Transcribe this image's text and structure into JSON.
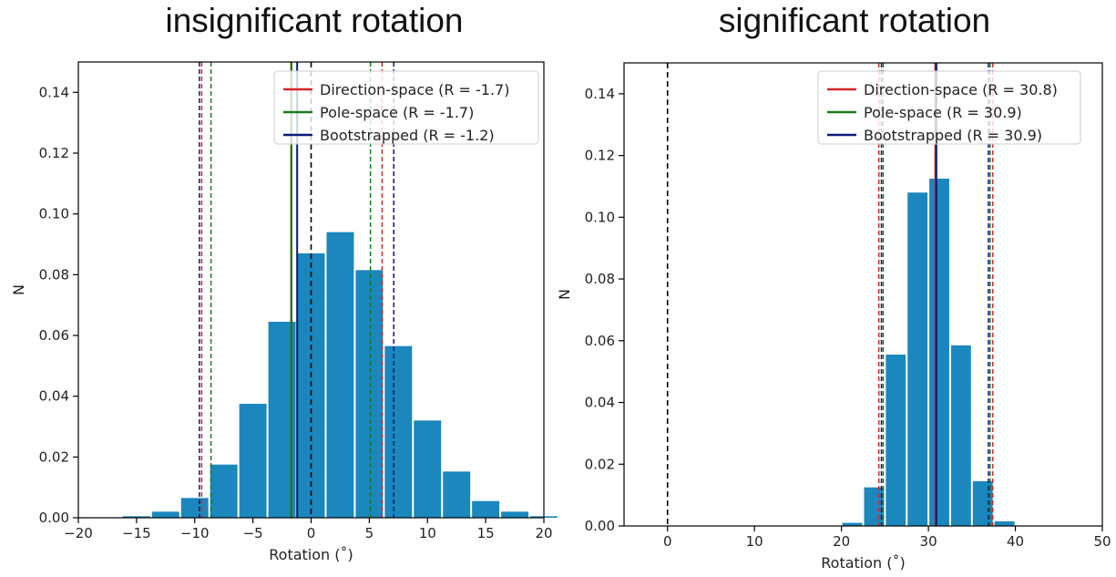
{
  "chart_data": [
    {
      "type": "bar",
      "title": "insignificant rotation",
      "xlabel": "Rotation (˚)",
      "ylabel": "N",
      "xlim": [
        -20,
        20
      ],
      "ylim": [
        0,
        0.15
      ],
      "xticks": [
        -20,
        -15,
        -10,
        -5,
        0,
        5,
        10,
        15,
        20
      ],
      "xtick_labels": [
        "−20",
        "−15",
        "−10",
        "−5",
        "0",
        "5",
        "10",
        "15",
        "20"
      ],
      "yticks": [
        0.0,
        0.02,
        0.04,
        0.06,
        0.08,
        0.1,
        0.12,
        0.14
      ],
      "ytick_labels": [
        "0.00",
        "0.02",
        "0.04",
        "0.06",
        "0.08",
        "0.10",
        "0.12",
        "0.14"
      ],
      "bin_width": 2.5,
      "bins": [
        {
          "x": -15.0,
          "value": 0.0005
        },
        {
          "x": -12.5,
          "value": 0.002
        },
        {
          "x": -10.0,
          "value": 0.0065
        },
        {
          "x": -7.5,
          "value": 0.0175
        },
        {
          "x": -5.0,
          "value": 0.0375
        },
        {
          "x": -2.5,
          "value": 0.0645
        },
        {
          "x": 0.0,
          "value": 0.087
        },
        {
          "x": 2.5,
          "value": 0.094
        },
        {
          "x": 5.0,
          "value": 0.0815
        },
        {
          "x": 7.5,
          "value": 0.0565
        },
        {
          "x": 10.0,
          "value": 0.032
        },
        {
          "x": 12.5,
          "value": 0.0152
        },
        {
          "x": 15.0,
          "value": 0.0055
        },
        {
          "x": 17.5,
          "value": 0.002
        },
        {
          "x": 20.0,
          "value": 0.0005
        }
      ],
      "reference_line": 0,
      "series": [
        {
          "name": "Direction-space (R = -1.7)",
          "color": "#d62728",
          "mean": -1.7,
          "ci": [
            -9.4,
            6.1
          ]
        },
        {
          "name": "Pole-space (R = -1.7)",
          "color": "#1a7a1a",
          "mean": -1.7,
          "ci": [
            -8.6,
            5.1
          ]
        },
        {
          "name": "Bootstrapped (R = -1.2)",
          "color": "#0a1a7a",
          "mean": -1.2,
          "ci": [
            -9.6,
            7.1
          ]
        }
      ],
      "legend_position": "top-right",
      "grid": false
    },
    {
      "type": "bar",
      "title": "significant rotation",
      "xlabel": "Rotation (˚)",
      "ylabel": "N",
      "xlim": [
        -5,
        50
      ],
      "ylim": [
        0,
        0.15
      ],
      "xticks": [
        0,
        10,
        20,
        30,
        40,
        50
      ],
      "xtick_labels": [
        "0",
        "10",
        "20",
        "30",
        "40",
        "50"
      ],
      "yticks": [
        0.0,
        0.02,
        0.04,
        0.06,
        0.08,
        0.1,
        0.12,
        0.14
      ],
      "ytick_labels": [
        "0.00",
        "0.02",
        "0.04",
        "0.06",
        "0.08",
        "0.10",
        "0.12",
        "0.14"
      ],
      "bin_width": 2.5,
      "bins": [
        {
          "x": 21.25,
          "value": 0.001
        },
        {
          "x": 23.75,
          "value": 0.0125
        },
        {
          "x": 26.25,
          "value": 0.0555
        },
        {
          "x": 28.75,
          "value": 0.108
        },
        {
          "x": 31.25,
          "value": 0.1125
        },
        {
          "x": 33.75,
          "value": 0.0585
        },
        {
          "x": 36.25,
          "value": 0.0145
        },
        {
          "x": 38.75,
          "value": 0.0015
        }
      ],
      "reference_line": 0,
      "series": [
        {
          "name": "Direction-space (R = 30.8)",
          "color": "#d62728",
          "mean": 30.8,
          "ci": [
            24.3,
            37.4
          ]
        },
        {
          "name": "Pole-space (R = 30.9)",
          "color": "#1a7a1a",
          "mean": 30.9,
          "ci": [
            24.8,
            37.1
          ]
        },
        {
          "name": "Bootstrapped (R = 30.9)",
          "color": "#0a1a7a",
          "mean": 30.9,
          "ci": [
            24.6,
            36.9
          ]
        }
      ],
      "legend_position": "top-right",
      "grid": false
    }
  ]
}
